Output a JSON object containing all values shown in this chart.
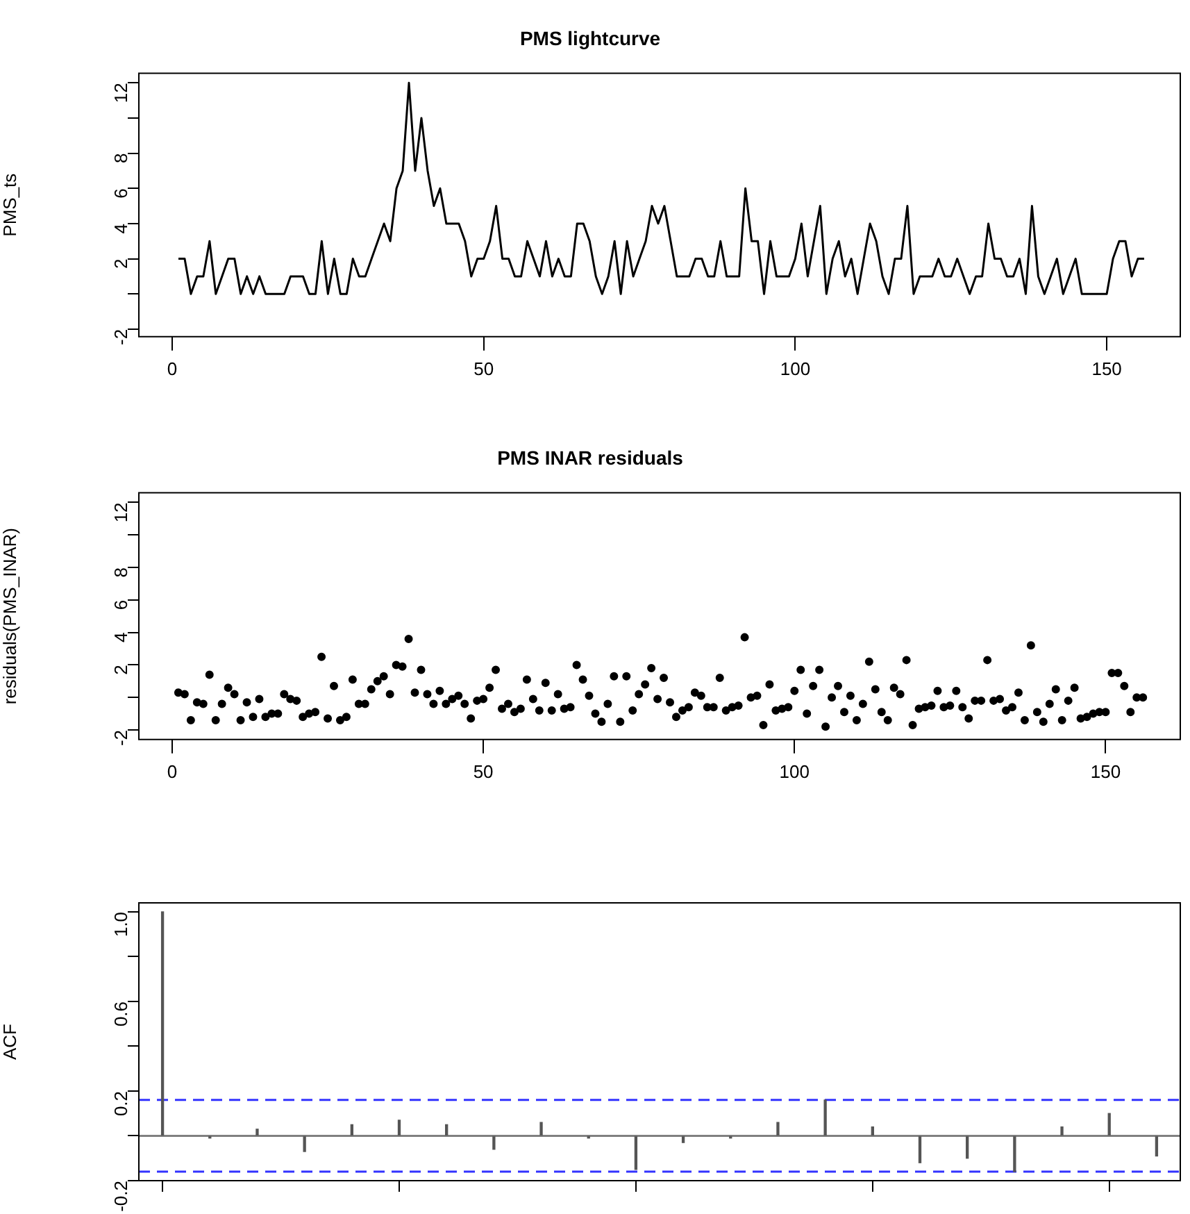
{
  "chart_data": [
    {
      "type": "line",
      "title": "PMS lightcurve",
      "ylabel": "PMS_ts",
      "color": "#000000",
      "marker": "none",
      "grid": false,
      "legend": false,
      "x": [
        1,
        2,
        3,
        4,
        5,
        6,
        7,
        8,
        9,
        10,
        11,
        12,
        13,
        14,
        15,
        16,
        17,
        18,
        19,
        20,
        21,
        22,
        23,
        24,
        25,
        26,
        27,
        28,
        29,
        30,
        31,
        32,
        33,
        34,
        35,
        36,
        37,
        38,
        39,
        40,
        41,
        42,
        43,
        44,
        45,
        46,
        47,
        48,
        49,
        50,
        51,
        52,
        53,
        54,
        55,
        56,
        57,
        58,
        59,
        60,
        61,
        62,
        63,
        64,
        65,
        66,
        67,
        68,
        69,
        70,
        71,
        72,
        73,
        74,
        75,
        76,
        77,
        78,
        79,
        80,
        81,
        82,
        83,
        84,
        85,
        86,
        87,
        88,
        89,
        90,
        91,
        92,
        93,
        94,
        95,
        96,
        97,
        98,
        99,
        100,
        101,
        102,
        103,
        104,
        105,
        106,
        107,
        108,
        109,
        110,
        111,
        112,
        113,
        114,
        115,
        116,
        117,
        118,
        119,
        120,
        121,
        122,
        123,
        124,
        125,
        126,
        127,
        128,
        129,
        130,
        131,
        132,
        133,
        134,
        135,
        136,
        137,
        138,
        139,
        140,
        141,
        142,
        143,
        144,
        145,
        146,
        147,
        148,
        149,
        150,
        151,
        152,
        153,
        154,
        155,
        156
      ],
      "values": [
        2,
        2,
        0,
        1,
        1,
        3,
        0,
        1,
        2,
        2,
        0,
        1,
        0,
        1,
        0,
        0,
        0,
        0,
        1,
        1,
        1,
        0,
        0,
        3,
        0,
        2,
        0,
        0,
        2,
        1,
        1,
        2,
        3,
        4,
        3,
        6,
        7,
        12,
        7,
        10,
        7,
        5,
        6,
        4,
        4,
        4,
        3,
        1,
        2,
        2,
        3,
        5,
        2,
        2,
        1,
        1,
        3,
        2,
        1,
        3,
        1,
        2,
        1,
        1,
        4,
        4,
        3,
        1,
        0,
        1,
        3,
        0,
        3,
        1,
        2,
        3,
        5,
        4,
        5,
        3,
        1,
        1,
        1,
        2,
        2,
        1,
        1,
        3,
        1,
        1,
        1,
        6,
        3,
        3,
        0,
        3,
        1,
        1,
        1,
        2,
        4,
        1,
        3,
        5,
        0,
        2,
        3,
        1,
        2,
        0,
        2,
        4,
        3,
        1,
        0,
        2,
        2,
        5,
        0,
        1,
        1,
        1,
        2,
        1,
        1,
        2,
        1,
        0,
        1,
        1,
        4,
        2,
        2,
        1,
        1,
        2,
        0,
        5,
        1,
        0,
        1,
        2,
        0,
        1,
        2,
        0,
        0,
        0,
        0,
        0,
        2,
        3,
        3,
        1,
        2,
        2
      ],
      "xlim": [
        -5.35,
        161.8
      ],
      "xticks": [
        0,
        50,
        100,
        150
      ],
      "ylim": [
        -2.43,
        12.54
      ],
      "yticks": [
        -2,
        {
          "value": 0,
          "label": null
        },
        2,
        4,
        6,
        8,
        {
          "value": 10,
          "label": null
        },
        12
      ]
    },
    {
      "type": "scatter",
      "title": "PMS INAR residuals",
      "ylabel": "residuals(PMS_INAR)",
      "color": "#000000",
      "marker": "circle",
      "grid": false,
      "legend": false,
      "x": [
        1,
        2,
        3,
        4,
        5,
        6,
        7,
        8,
        9,
        10,
        11,
        12,
        13,
        14,
        15,
        16,
        17,
        18,
        19,
        20,
        21,
        22,
        23,
        24,
        25,
        26,
        27,
        28,
        29,
        30,
        31,
        32,
        33,
        34,
        35,
        36,
        37,
        38,
        39,
        40,
        41,
        42,
        43,
        44,
        45,
        46,
        47,
        48,
        49,
        50,
        51,
        52,
        53,
        54,
        55,
        56,
        57,
        58,
        59,
        60,
        61,
        62,
        63,
        64,
        65,
        66,
        67,
        68,
        69,
        70,
        71,
        72,
        73,
        74,
        75,
        76,
        77,
        78,
        79,
        80,
        81,
        82,
        83,
        84,
        85,
        86,
        87,
        88,
        89,
        90,
        91,
        92,
        93,
        94,
        95,
        96,
        97,
        98,
        99,
        100,
        101,
        102,
        103,
        104,
        105,
        106,
        107,
        108,
        109,
        110,
        111,
        112,
        113,
        114,
        115,
        116,
        117,
        118,
        119,
        120,
        121,
        122,
        123,
        124,
        125,
        126,
        127,
        128,
        129,
        130,
        131,
        132,
        133,
        134,
        135,
        136,
        137,
        138,
        139,
        140,
        141,
        142,
        143,
        144,
        145,
        146,
        147,
        148,
        149,
        150,
        151,
        152,
        153,
        154,
        155,
        156
      ],
      "values": [
        0.3,
        0.2,
        -1.4,
        -0.3,
        -0.4,
        1.4,
        -1.4,
        -0.4,
        0.6,
        0.2,
        -1.4,
        -0.3,
        -1.2,
        -0.1,
        -1.2,
        -1.0,
        -1.0,
        0.2,
        -0.1,
        -0.2,
        -1.2,
        -1.0,
        -0.9,
        2.5,
        -1.3,
        0.7,
        -1.4,
        -1.2,
        1.1,
        -0.4,
        -0.4,
        0.5,
        1.0,
        1.3,
        0.2,
        2.0,
        1.9,
        3.6,
        0.3,
        1.7,
        0.2,
        -0.4,
        0.4,
        -0.4,
        -0.1,
        0.1,
        -0.4,
        -1.3,
        -0.2,
        -0.1,
        0.6,
        1.7,
        -0.7,
        -0.4,
        -0.9,
        -0.7,
        1.1,
        -0.1,
        -0.8,
        0.9,
        -0.8,
        0.2,
        -0.7,
        -0.6,
        2.0,
        1.1,
        0.1,
        -1.0,
        -1.5,
        -0.4,
        1.3,
        -1.5,
        1.3,
        -0.8,
        0.2,
        0.8,
        1.8,
        -0.1,
        1.2,
        -0.3,
        -1.2,
        -0.8,
        -0.6,
        0.3,
        0.1,
        -0.6,
        -0.6,
        1.2,
        -0.8,
        -0.6,
        -0.5,
        3.7,
        0.0,
        0.1,
        -1.7,
        0.8,
        -0.8,
        -0.7,
        -0.6,
        0.4,
        1.7,
        -1.0,
        0.7,
        1.7,
        -1.8,
        0.0,
        0.7,
        -0.9,
        0.1,
        -1.4,
        -0.4,
        2.2,
        0.5,
        -0.9,
        -1.4,
        0.6,
        0.2,
        2.3,
        -1.7,
        -0.7,
        -0.6,
        -0.5,
        0.4,
        -0.6,
        -0.5,
        0.4,
        -0.6,
        -1.3,
        -0.2,
        -0.2,
        2.3,
        -0.2,
        -0.1,
        -0.8,
        -0.6,
        0.3,
        -1.4,
        3.2,
        -0.9,
        -1.5,
        -0.4,
        0.5,
        -1.4,
        -0.2,
        0.6,
        -1.3,
        -1.2,
        -1.0,
        -0.9,
        -0.9,
        1.5,
        1.5,
        0.7,
        -0.9,
        0.0,
        0.0
      ],
      "xlim": [
        -5.35,
        162
      ],
      "xticks": [
        0,
        50,
        100,
        150
      ],
      "ylim": [
        -2.59,
        12.59
      ],
      "yticks": [
        -2,
        {
          "value": 0,
          "label": null
        },
        2,
        4,
        6,
        8,
        {
          "value": 10,
          "label": null
        },
        12
      ]
    },
    {
      "type": "bar",
      "ylabel": "ACF",
      "color": "#555555",
      "grid": false,
      "legend": false,
      "tick_labels": "y",
      "categories": [
        null,
        null,
        null,
        null,
        null,
        null,
        null,
        null,
        null,
        null,
        null,
        null,
        null,
        null,
        null,
        null,
        null,
        null,
        null,
        null,
        null,
        null
      ],
      "values": [
        1.0,
        -0.01,
        0.03,
        -0.07,
        0.05,
        0.07,
        0.05,
        -0.06,
        0.06,
        -0.01,
        -0.15,
        -0.03,
        -0.01,
        0.06,
        0.16,
        0.04,
        -0.12,
        -0.1,
        -0.16,
        0.04,
        0.1,
        -0.09
      ],
      "ylim": [
        -0.2,
        1.04
      ],
      "yticks": [
        {
          "value": -0.2,
          "label": "-0.2"
        },
        {
          "value": 0,
          "label": null
        },
        {
          "value": 0.2,
          "label": "0.2"
        },
        {
          "value": 0.4,
          "label": null
        },
        {
          "value": 0.6,
          "label": "0.6"
        },
        {
          "value": 0.8,
          "label": null
        },
        {
          "value": 1,
          "label": "1.0"
        }
      ],
      "ref_lines": [
        {
          "axis": "y",
          "value": 0,
          "color": "#808080",
          "line_style": "solid"
        },
        {
          "axis": "y",
          "value": 0.16,
          "color": "#3333ff",
          "line_style": "dashed"
        },
        {
          "axis": "y",
          "value": -0.16,
          "color": "#3333ff",
          "line_style": "dashed"
        }
      ]
    }
  ]
}
